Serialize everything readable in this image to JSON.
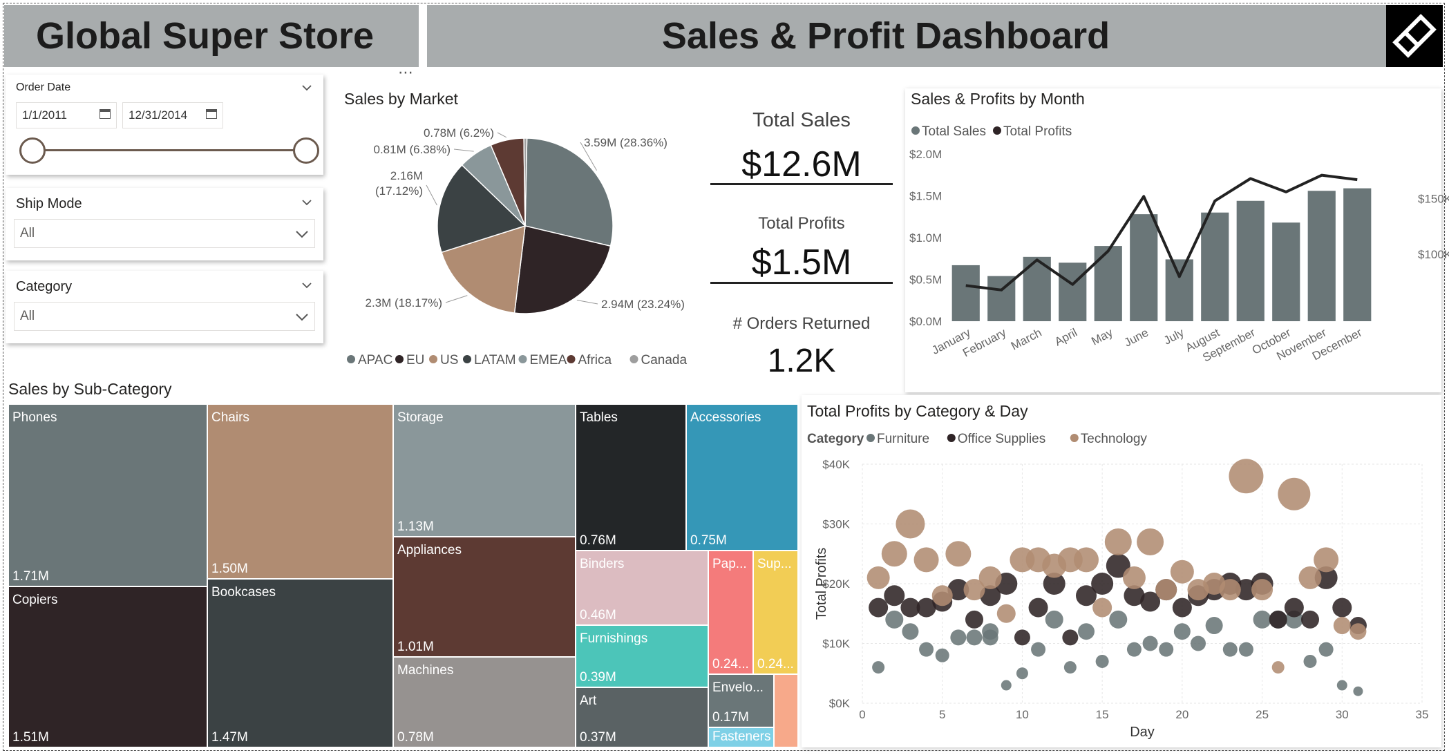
{
  "header": {
    "store_title": "Global Super Store",
    "dashboard_title": "Sales & Profit Dashboard"
  },
  "filters": {
    "order_date": {
      "label": "Order Date",
      "start": "1/1/2011",
      "end": "12/31/2014"
    },
    "ship_mode": {
      "label": "Ship Mode",
      "value": "All"
    },
    "category": {
      "label": "Category",
      "value": "All"
    }
  },
  "kpis": {
    "total_sales_label": "Total Sales",
    "total_sales": "$12.6M",
    "total_profits_label": "Total Profits",
    "total_profits": "$1.5M",
    "orders_returned_label": "# Orders Returned",
    "orders_returned": "1.2K"
  },
  "colors": {
    "header_bg": "#a8acad",
    "grey": "#6a7678",
    "dark": "#2f2426",
    "tan": "#b08c72",
    "teal_dark": "#3b4244",
    "accent_blue": "#3597b7"
  },
  "visual_titles": {
    "pie": "Sales by Market",
    "line": "Sales & Profits by Month",
    "treemap": "Sales by Sub-Category",
    "scatter": "Total Profits by Category & Day"
  },
  "chart_data": [
    {
      "id": "market_pie",
      "type": "pie",
      "title": "Sales by Market",
      "slices": [
        {
          "name": "APAC",
          "value": 3.59,
          "label": "3.59M (28.36%)",
          "color": "#6a7678"
        },
        {
          "name": "EU",
          "value": 2.94,
          "label": "2.94M (23.24%)",
          "color": "#2f2426"
        },
        {
          "name": "US",
          "value": 2.3,
          "label": "2.3M (18.17%)",
          "color": "#b08c72"
        },
        {
          "name": "LATAM",
          "value": 2.16,
          "label": "2.16M (17.12%)",
          "color": "#3b4244"
        },
        {
          "name": "EMEA",
          "value": 0.81,
          "label": "0.81M (6.38%)",
          "color": "#8a979a"
        },
        {
          "name": "Africa",
          "value": 0.78,
          "label": "0.78M (6.2%)",
          "color": "#5d3a33"
        },
        {
          "name": "Canada",
          "value": 0.07,
          "label": "",
          "color": "#9e9e9e"
        }
      ]
    },
    {
      "id": "monthly_combo",
      "type": "bar",
      "title": "Sales & Profits by Month",
      "legend": [
        "Total Sales",
        "Total Profits"
      ],
      "categories": [
        "January",
        "February",
        "March",
        "April",
        "May",
        "June",
        "July",
        "August",
        "September",
        "October",
        "November",
        "December"
      ],
      "series": [
        {
          "name": "Total Sales",
          "axis": "left",
          "values": [
            0.67,
            0.54,
            0.77,
            0.7,
            0.9,
            1.28,
            0.74,
            1.3,
            1.44,
            1.18,
            1.56,
            1.59
          ]
        },
        {
          "name": "Total Profits",
          "axis": "right",
          "values": [
            72,
            68,
            95,
            73,
            103,
            152,
            80,
            148,
            168,
            156,
            171,
            167
          ]
        }
      ],
      "y_ticks": [
        "$0.0M",
        "$0.5M",
        "$1.0M",
        "$1.5M",
        "$2.0M"
      ],
      "ylim": [
        0,
        2.0
      ],
      "y2_ticks": [
        "$100K",
        "$150K"
      ],
      "y2lim": [
        40,
        190
      ]
    },
    {
      "id": "subcategory_treemap",
      "type": "table",
      "title": "Sales by Sub-Category",
      "items": [
        {
          "name": "Phones",
          "value": "1.71M"
        },
        {
          "name": "Copiers",
          "value": "1.51M"
        },
        {
          "name": "Chairs",
          "value": "1.50M"
        },
        {
          "name": "Bookcases",
          "value": "1.47M"
        },
        {
          "name": "Storage",
          "value": "1.13M"
        },
        {
          "name": "Appliances",
          "value": "1.01M"
        },
        {
          "name": "Machines",
          "value": "0.78M"
        },
        {
          "name": "Tables",
          "value": "0.76M"
        },
        {
          "name": "Accessories",
          "value": "0.75M"
        },
        {
          "name": "Binders",
          "value": "0.46M"
        },
        {
          "name": "Furnishings",
          "value": "0.39M"
        },
        {
          "name": "Art",
          "value": "0.37M"
        },
        {
          "name": "Pap...",
          "value": "0.24..."
        },
        {
          "name": "Sup...",
          "value": "0.24..."
        },
        {
          "name": "Envelo...",
          "value": "0.17M"
        },
        {
          "name": "Fasteners",
          "value": ""
        }
      ]
    },
    {
      "id": "profit_scatter",
      "type": "scatter",
      "title": "Total Profits by Category & Day",
      "legend_title": "Category",
      "xlabel": "Day",
      "ylabel": "Total Profits",
      "xlim": [
        0,
        35
      ],
      "ylim": [
        0,
        40
      ],
      "x_ticks": [
        "0",
        "5",
        "10",
        "15",
        "20",
        "25",
        "30",
        "35"
      ],
      "y_ticks": [
        "$0K",
        "$10K",
        "$20K",
        "$30K",
        "$40K"
      ],
      "series": [
        {
          "name": "Furniture",
          "color": "#6a7678",
          "points": [
            [
              1,
              6
            ],
            [
              2,
              14
            ],
            [
              3,
              12
            ],
            [
              4,
              9
            ],
            [
              5,
              8
            ],
            [
              6,
              11
            ],
            [
              7,
              11
            ],
            [
              8,
              12
            ],
            [
              8,
              11
            ],
            [
              9,
              3
            ],
            [
              10,
              5
            ],
            [
              11,
              9
            ],
            [
              12,
              14
            ],
            [
              13,
              6
            ],
            [
              14,
              12
            ],
            [
              15,
              7
            ],
            [
              16,
              14
            ],
            [
              17,
              9
            ],
            [
              18,
              10
            ],
            [
              19,
              9
            ],
            [
              20,
              12
            ],
            [
              21,
              10
            ],
            [
              22,
              13
            ],
            [
              23,
              9
            ],
            [
              24,
              9
            ],
            [
              25,
              14
            ],
            [
              26,
              14
            ],
            [
              27,
              14
            ],
            [
              28,
              7
            ],
            [
              29,
              9
            ],
            [
              30,
              3
            ],
            [
              31,
              2
            ]
          ]
        },
        {
          "name": "Office Supplies",
          "color": "#2f2426",
          "points": [
            [
              1,
              16
            ],
            [
              2,
              18
            ],
            [
              3,
              16
            ],
            [
              4,
              16
            ],
            [
              5,
              17
            ],
            [
              6,
              19
            ],
            [
              7,
              14
            ],
            [
              8,
              18
            ],
            [
              9,
              20
            ],
            [
              10,
              11
            ],
            [
              11,
              16
            ],
            [
              12,
              20
            ],
            [
              13,
              11
            ],
            [
              14,
              18
            ],
            [
              15,
              20
            ],
            [
              16,
              23
            ],
            [
              17,
              18
            ],
            [
              18,
              17
            ],
            [
              19,
              19
            ],
            [
              20,
              16
            ],
            [
              21,
              18
            ],
            [
              22,
              19
            ],
            [
              23,
              20
            ],
            [
              24,
              19
            ],
            [
              25,
              20
            ],
            [
              26,
              14
            ],
            [
              27,
              16
            ],
            [
              28,
              14
            ],
            [
              29,
              21
            ],
            [
              30,
              16
            ],
            [
              31,
              13
            ]
          ]
        },
        {
          "name": "Technology",
          "color": "#b08c72",
          "points": [
            [
              1,
              21
            ],
            [
              2,
              25
            ],
            [
              3,
              30
            ],
            [
              4,
              24
            ],
            [
              5,
              18
            ],
            [
              6,
              25
            ],
            [
              7,
              19
            ],
            [
              8,
              21
            ],
            [
              9,
              15
            ],
            [
              10,
              24
            ],
            [
              11,
              24
            ],
            [
              12,
              23
            ],
            [
              13,
              24
            ],
            [
              14,
              24
            ],
            [
              15,
              16
            ],
            [
              16,
              27
            ],
            [
              17,
              21
            ],
            [
              18,
              27
            ],
            [
              19,
              19
            ],
            [
              20,
              22
            ],
            [
              21,
              19
            ],
            [
              22,
              20
            ],
            [
              23,
              19
            ],
            [
              24,
              38
            ],
            [
              25,
              19
            ],
            [
              26,
              6
            ],
            [
              27,
              35
            ],
            [
              28,
              21
            ],
            [
              29,
              24
            ],
            [
              30,
              13
            ],
            [
              31,
              12
            ]
          ]
        }
      ]
    }
  ]
}
